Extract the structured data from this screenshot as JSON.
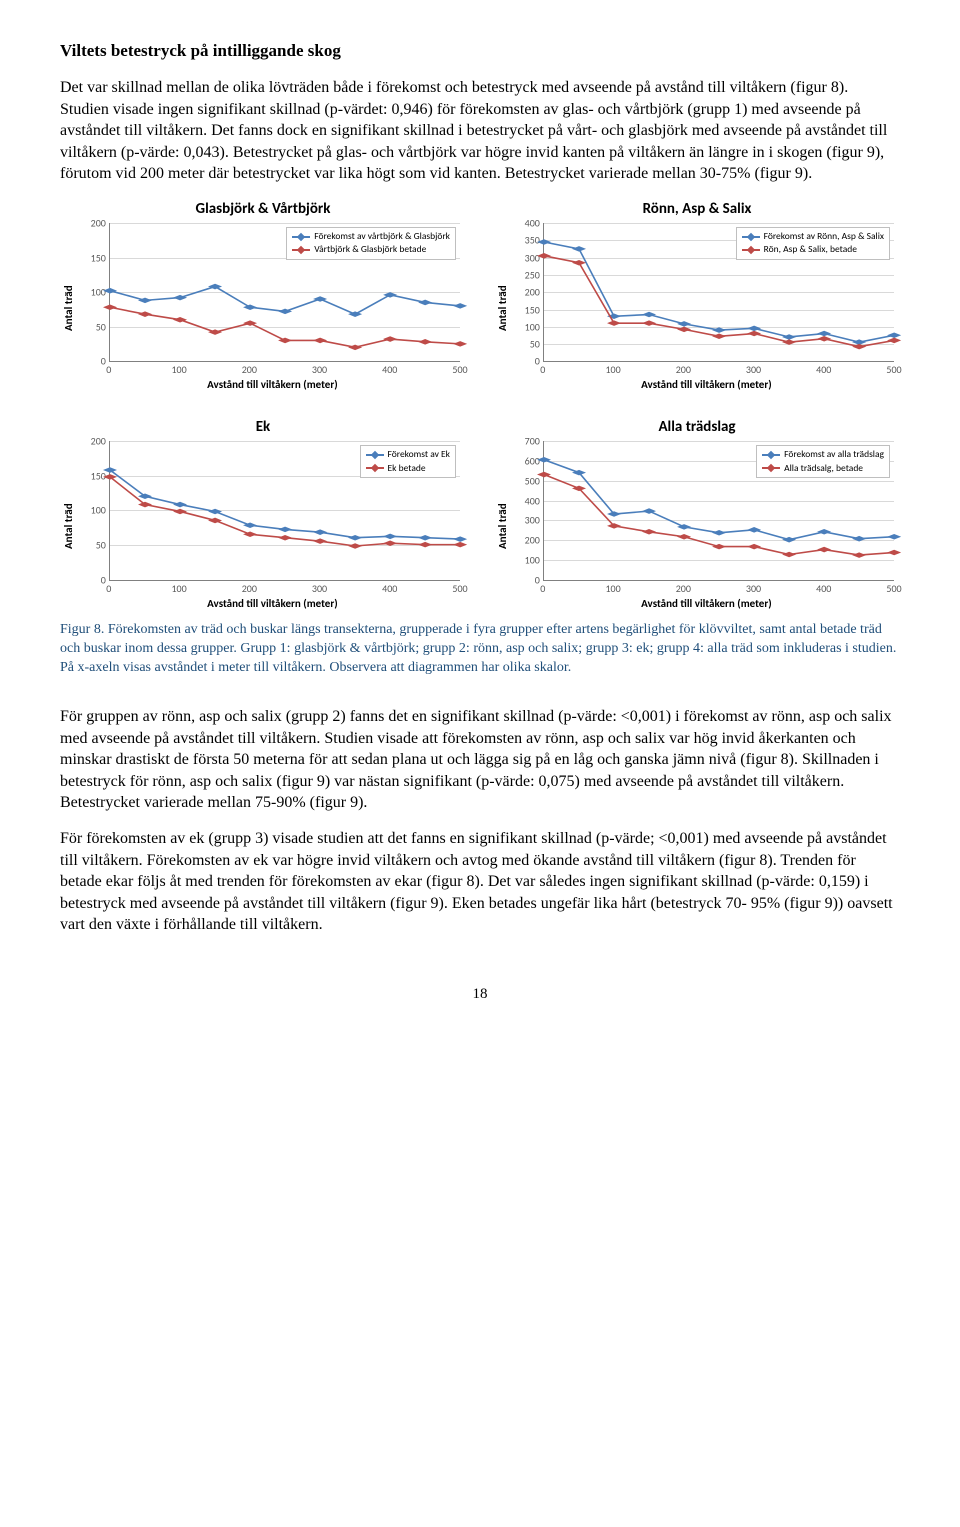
{
  "section_title": "Viltets betestryck på intilliggande skog",
  "paragraph_1": "Det var skillnad mellan de olika lövträden både i förekomst och betestryck med avseende på avstånd till viltåkern (figur 8). Studien visade ingen signifikant skillnad (p-värdet: 0,946) för förekomsten av glas- och vårtbjörk (grupp 1) med avseende på avståndet till viltåkern. Det fanns dock en signifikant skillnad i betestrycket på vårt- och glasbjörk med avseende på avståndet till viltåkern (p-värde: 0,043). Betestrycket på glas- och vårtbjörk var högre invid kanten på viltåkern än längre in i skogen (figur 9), förutom vid 200 meter där betestrycket var lika högt som vid kanten. Betestrycket varierade mellan 30-75% (figur 9).",
  "caption": "Figur 8. Förekomsten av träd och buskar längs transekterna, grupperade i fyra grupper efter artens begärlighet för klövviltet, samt antal betade träd och buskar inom dessa grupper. Grupp 1: glasbjörk & vårtbjörk; grupp 2: rönn, asp och salix; grupp 3: ek; grupp 4: alla träd som inkluderas i studien. På x-axeln visas avståndet i meter till viltåkern. Observera att diagrammen har olika skalor.",
  "paragraph_2": "För gruppen av rönn, asp och salix (grupp 2) fanns det en signifikant skillnad   (p-värde: <0,001) i förekomst av rönn, asp och salix med avseende på avståndet till viltåkern. Studien visade att förekomsten av rönn, asp och salix var hög invid åkerkanten och minskar drastiskt de första 50 meterna för att sedan plana ut och lägga sig på en låg och ganska jämn nivå (figur 8). Skillnaden i betestryck för rönn, asp och salix (figur 9) var nästan signifikant (p-värde: 0,075) med avseende på avståndet till viltåkern. Betestrycket varierade mellan 75-90% (figur 9).",
  "paragraph_3": "För förekomsten av ek (grupp 3) visade studien att det fanns en signifikant skillnad (p-värde; <0,001) med avseende på avståndet till viltåkern. Förekomsten av ek var högre invid viltåkern och avtog med ökande avstånd till viltåkern (figur 8). Trenden för betade ekar följs åt med trenden för förekomsten av ekar (figur 8). Det var således ingen signifikant skillnad (p-värde: 0,159) i betestryck med avseende på avståndet till viltåkern (figur 9). Eken betades ungefär lika hårt (betestryck 70- 95% (figur 9)) oavsett vart den växte i förhållande till viltåkern.",
  "page_number": "18",
  "chart_common": {
    "xlabel": "Avstånd till viltåkern (meter)",
    "ylabel": "Antal träd",
    "xticks": [
      0,
      100,
      200,
      300,
      400,
      500
    ],
    "series1_color": "#4a7ebb",
    "series2_color": "#be4b48",
    "grid_color": "#d9d9d9",
    "axis_color": "#808080",
    "marker_type": "diamond",
    "marker_size": 6,
    "line_width": 2,
    "label_fontsize": 11,
    "tick_fontsize": 10,
    "title_fontsize": 15,
    "background_color": "#ffffff"
  },
  "charts": [
    {
      "title": "Glasbjörk & Vårtbjörk",
      "ymax": 200,
      "ytick_step": 50,
      "x": [
        0,
        50,
        100,
        150,
        200,
        250,
        300,
        350,
        400,
        450,
        500
      ],
      "s1": [
        102,
        88,
        92,
        108,
        78,
        72,
        90,
        68,
        96,
        85,
        80
      ],
      "s2": [
        78,
        68,
        60,
        42,
        55,
        30,
        30,
        20,
        32,
        28,
        25
      ],
      "legend1": "Förekomst av vårtbjörk & Glasbjörk",
      "legend2": "Vårtbjörk & Glasbjörk betade"
    },
    {
      "title": "Rönn, Asp & Salix",
      "ymax": 400,
      "ytick_step": 50,
      "x": [
        0,
        50,
        100,
        150,
        200,
        250,
        300,
        350,
        400,
        450,
        500
      ],
      "s1": [
        345,
        325,
        130,
        135,
        108,
        90,
        95,
        70,
        80,
        55,
        75
      ],
      "s2": [
        305,
        285,
        110,
        110,
        92,
        72,
        80,
        55,
        65,
        42,
        60
      ],
      "legend1": "Förekomst av Rönn, Asp & Salix",
      "legend2": "Rön, Asp & Salix, betade"
    },
    {
      "title": "Ek",
      "ymax": 200,
      "ytick_step": 50,
      "x": [
        0,
        50,
        100,
        150,
        200,
        250,
        300,
        350,
        400,
        450,
        500
      ],
      "s1": [
        158,
        120,
        108,
        98,
        78,
        72,
        68,
        60,
        62,
        60,
        58
      ],
      "s2": [
        148,
        108,
        98,
        85,
        65,
        60,
        55,
        48,
        52,
        50,
        50
      ],
      "legend1": "Förekomst av Ek",
      "legend2": "Ek betade"
    },
    {
      "title": "Alla trädslag",
      "ymax": 700,
      "ytick_step": 100,
      "x": [
        0,
        50,
        100,
        150,
        200,
        250,
        300,
        350,
        400,
        450,
        500
      ],
      "s1": [
        605,
        540,
        330,
        345,
        265,
        235,
        250,
        200,
        240,
        205,
        215
      ],
      "s2": [
        530,
        460,
        270,
        240,
        215,
        165,
        165,
        125,
        150,
        122,
        135
      ],
      "legend1": "Förekomst av alla trädslag",
      "legend2": "Alla trädsalg, betade"
    }
  ]
}
